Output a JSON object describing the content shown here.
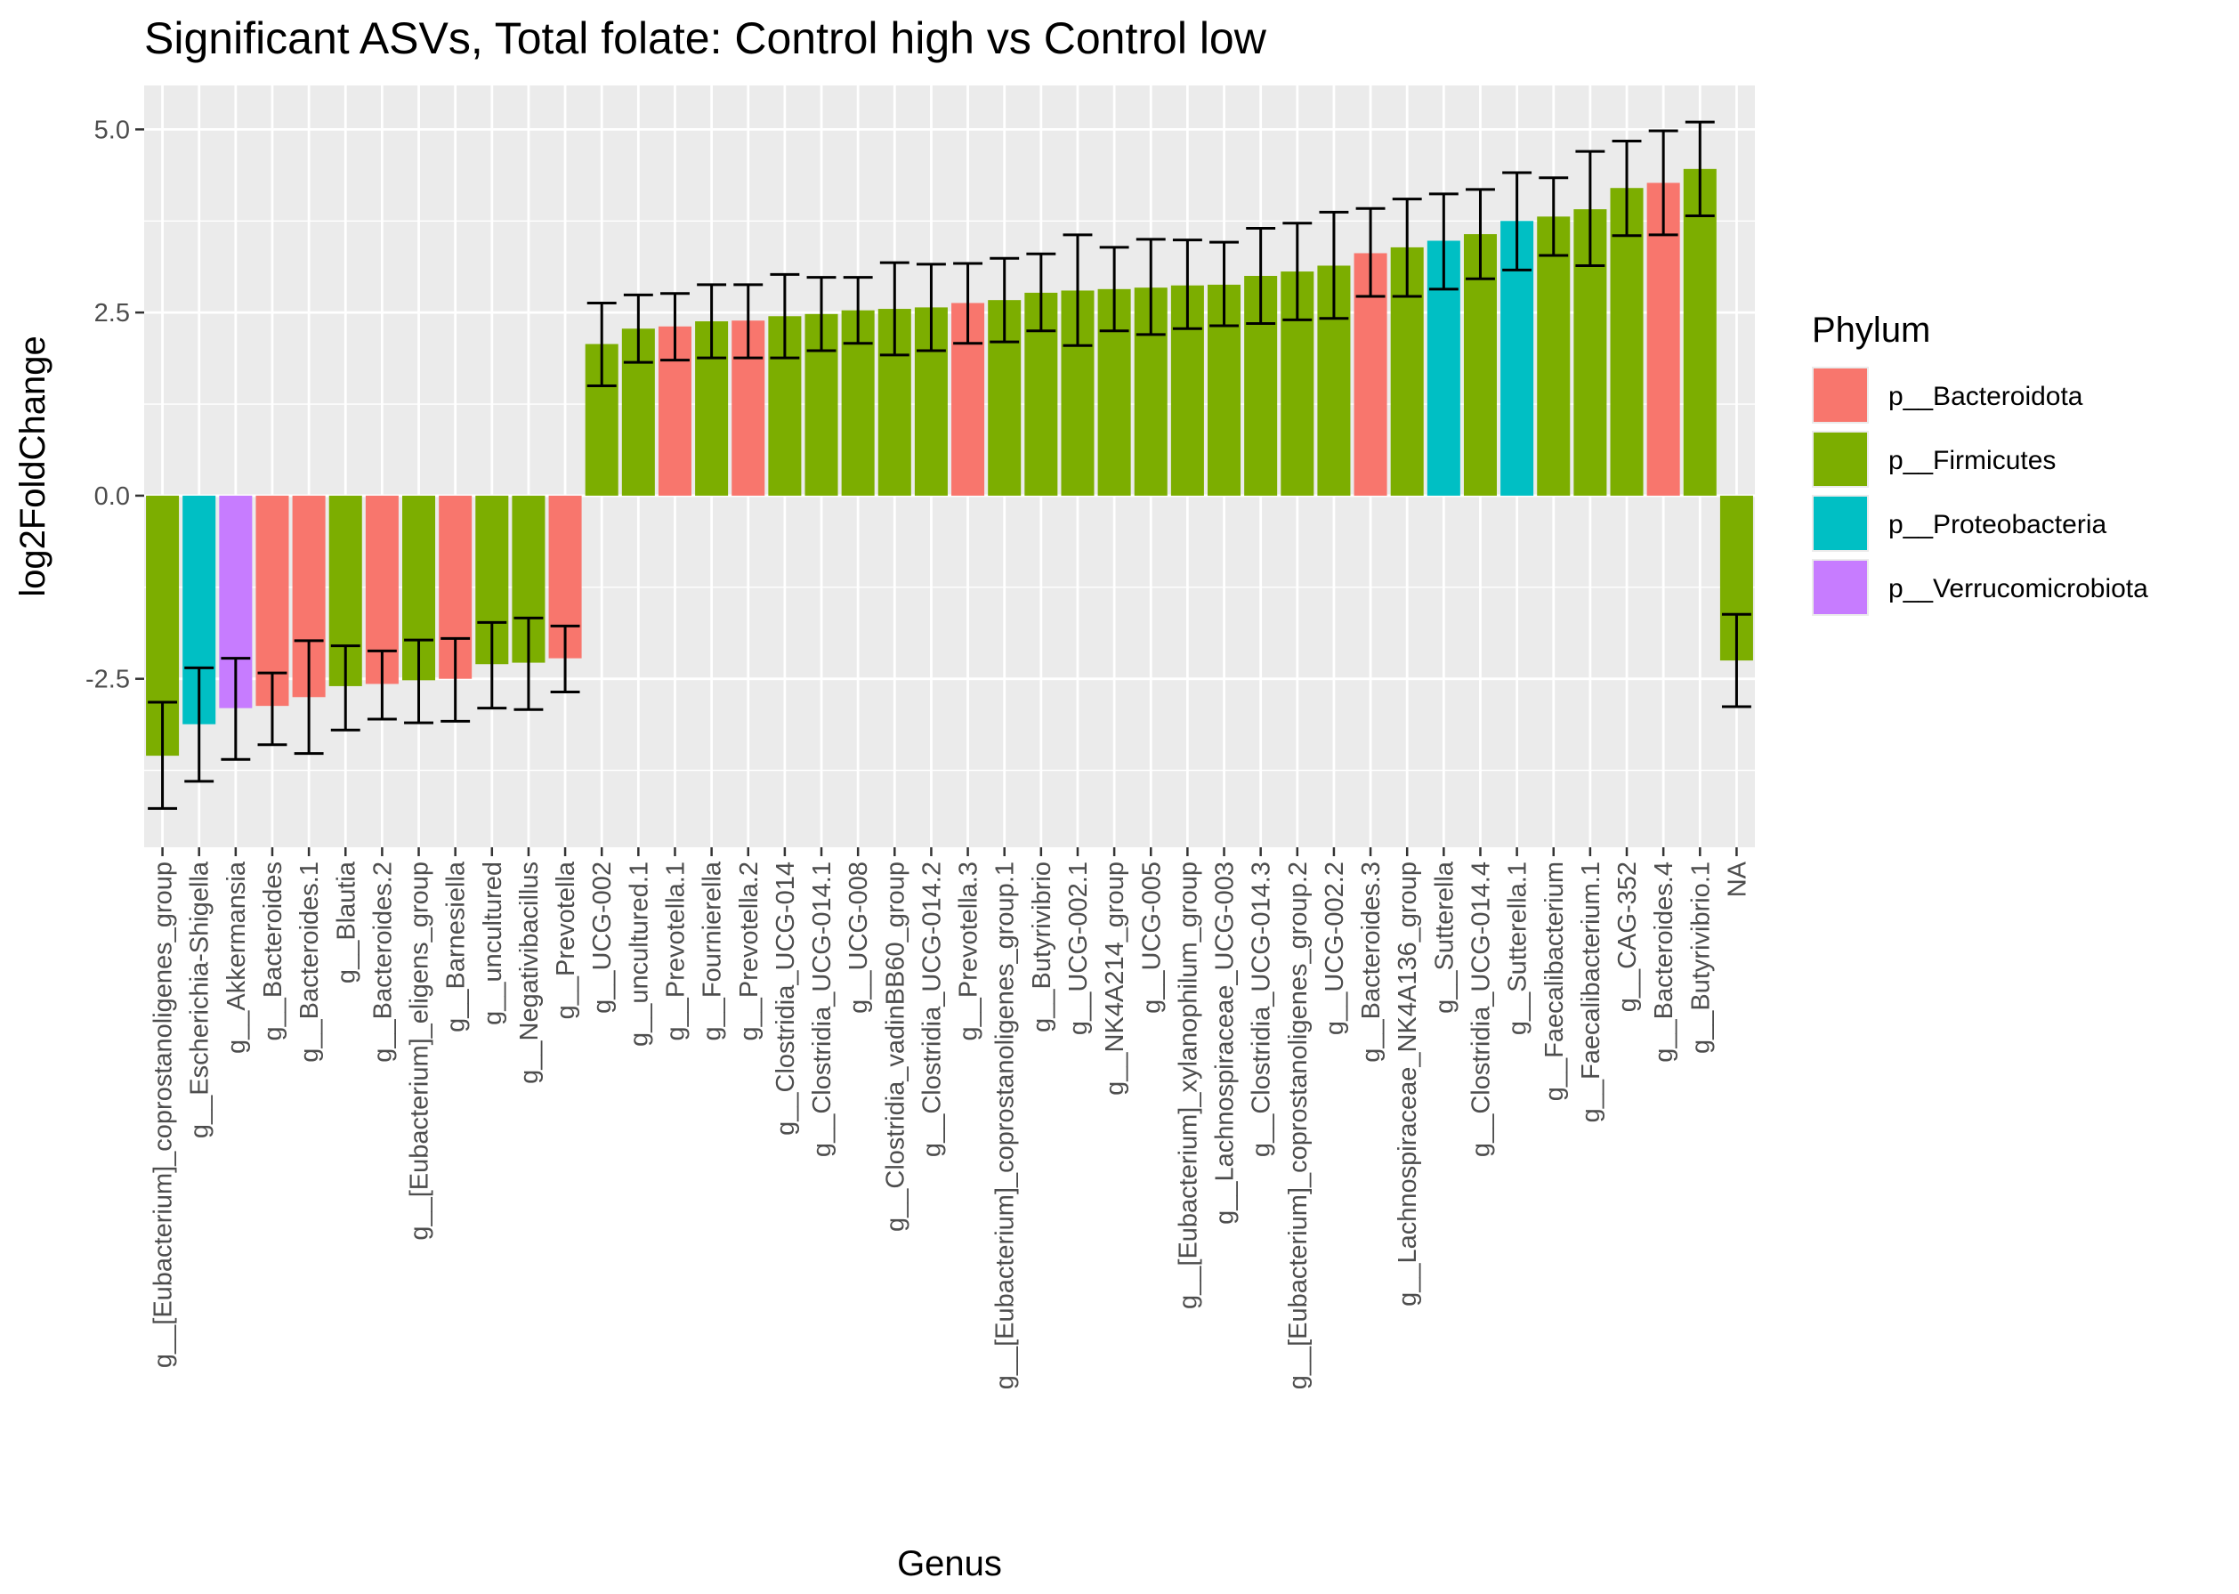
{
  "chart_data": {
    "type": "bar",
    "title": "Significant ASVs, Total folate: Control high vs Control low",
    "xlabel": "Genus",
    "ylabel": "log2FoldChange",
    "ylim": [
      -4.8,
      5.6
    ],
    "yticks": [
      -2.5,
      0.0,
      2.5,
      5.0
    ],
    "ytick_labels": [
      "-2.5",
      "0.0",
      "2.5",
      "5.0"
    ],
    "grid": true,
    "legend": {
      "title": "Phylum",
      "position": "right",
      "entries": [
        {
          "label": "p__Bacteroidota",
          "color": "#F8766D"
        },
        {
          "label": "p__Firmicutes",
          "color": "#7CAE00"
        },
        {
          "label": "p__Proteobacteria",
          "color": "#00BFC4"
        },
        {
          "label": "p__Verrucomicrobiota",
          "color": "#C77CFF"
        }
      ]
    },
    "categories": [
      "g__[Eubacterium]_coprostanoligenes_group",
      "g__Escherichia-Shigella",
      "g__Akkermansia",
      "g__Bacteroides",
      "g__Bacteroides.1",
      "g__Blautia",
      "g__Bacteroides.2",
      "g__[Eubacterium]_eligens_group",
      "g__Barnesiella",
      "g__uncultured",
      "g__Negativibacillus",
      "g__Prevotella",
      "g__UCG-002",
      "g__uncultured.1",
      "g__Prevotella.1",
      "g__Fournierella",
      "g__Prevotella.2",
      "g__Clostridia_UCG-014",
      "g__Clostridia_UCG-014.1",
      "g__UCG-008",
      "g__Clostridia_vadinBB60_group",
      "g__Clostridia_UCG-014.2",
      "g__Prevotella.3",
      "g__[Eubacterium]_coprostanoligenes_group.1",
      "g__Butyrivibrio",
      "g__UCG-002.1",
      "g__NK4A214_group",
      "g__UCG-005",
      "g__[Eubacterium]_xylanophilum_group",
      "g__Lachnospiraceae_UCG-003",
      "g__Clostridia_UCG-014.3",
      "g__[Eubacterium]_coprostanoligenes_group.2",
      "g__UCG-002.2",
      "g__Bacteroides.3",
      "g__Lachnospiraceae_NK4A136_group",
      "g__Sutterella",
      "g__Clostridia_UCG-014.4",
      "g__Sutterella.1",
      "g__Faecalibacterium",
      "g__Faecalibacterium.1",
      "g__CAG-352",
      "g__Bacteroides.4",
      "g__Butyrivibrio.1",
      "NA"
    ],
    "values": [
      -3.55,
      -3.12,
      -2.9,
      -2.87,
      -2.75,
      -2.6,
      -2.57,
      -2.52,
      -2.5,
      -2.3,
      -2.28,
      -2.22,
      2.07,
      2.28,
      2.31,
      2.38,
      2.39,
      2.45,
      2.48,
      2.53,
      2.55,
      2.57,
      2.63,
      2.67,
      2.77,
      2.8,
      2.82,
      2.84,
      2.87,
      2.88,
      3.0,
      3.06,
      3.14,
      3.31,
      3.39,
      3.48,
      3.57,
      3.75,
      3.81,
      3.91,
      4.2,
      4.27,
      4.46,
      -2.25
    ],
    "lower": [
      -4.27,
      -3.9,
      -3.6,
      -3.4,
      -3.52,
      -3.2,
      -3.05,
      -3.1,
      -3.08,
      -2.9,
      -2.92,
      -2.68,
      1.5,
      1.82,
      1.85,
      1.88,
      1.88,
      1.88,
      1.98,
      2.08,
      1.92,
      1.98,
      2.08,
      2.1,
      2.25,
      2.05,
      2.25,
      2.2,
      2.28,
      2.32,
      2.35,
      2.4,
      2.42,
      2.72,
      2.72,
      2.82,
      2.96,
      3.08,
      3.28,
      3.14,
      3.55,
      3.56,
      3.82,
      -2.88
    ],
    "upper": [
      -2.82,
      -2.35,
      -2.22,
      -2.42,
      -1.98,
      -2.05,
      -2.12,
      -1.97,
      -1.95,
      -1.73,
      -1.67,
      -1.78,
      2.63,
      2.74,
      2.76,
      2.88,
      2.88,
      3.02,
      2.98,
      2.98,
      3.18,
      3.16,
      3.17,
      3.24,
      3.3,
      3.56,
      3.39,
      3.5,
      3.49,
      3.46,
      3.65,
      3.72,
      3.87,
      3.92,
      4.05,
      4.12,
      4.18,
      4.41,
      4.34,
      4.7,
      4.84,
      4.98,
      5.1,
      -1.62
    ],
    "phylum_index": [
      1,
      2,
      3,
      0,
      0,
      1,
      0,
      1,
      0,
      1,
      1,
      0,
      1,
      1,
      0,
      1,
      0,
      1,
      1,
      1,
      1,
      1,
      0,
      1,
      1,
      1,
      1,
      1,
      1,
      1,
      1,
      1,
      1,
      0,
      1,
      2,
      1,
      2,
      1,
      1,
      1,
      0,
      1,
      1
    ]
  }
}
